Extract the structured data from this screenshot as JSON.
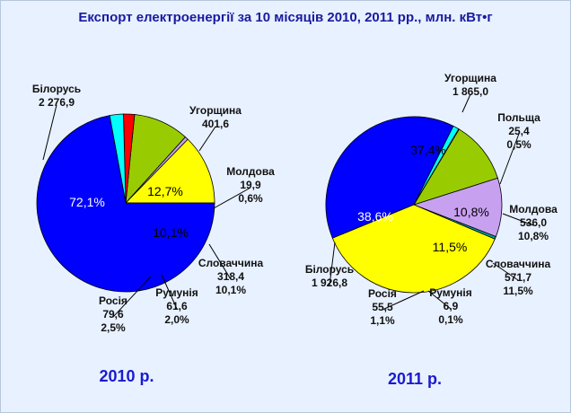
{
  "chart_data": {
    "type": "pie",
    "title": "Експорт електроенергії за 10 місяців 2010, 2011 рр., млн. кВт•г",
    "charts": [
      {
        "label": "2010 р.",
        "slices": [
          {
            "name": "Угорщина",
            "value": "401,6",
            "pct_label": "12,7%",
            "share": 12.7,
            "color": "#ffff00"
          },
          {
            "name": "Молдова",
            "value": "19,9",
            "pct_label": "0,6%",
            "share": 0.6,
            "color": "#c8a0f0"
          },
          {
            "name": "Словаччина",
            "value": "318,4",
            "pct_label": "10,1%",
            "share": 10.1,
            "color": "#99cc00"
          },
          {
            "name": "Румунія",
            "value": "61,6",
            "pct_label": "2,0%",
            "share": 2.0,
            "color": "#ff0000"
          },
          {
            "name": "Росія",
            "value": "79,6",
            "pct_label": "2,5%",
            "share": 2.5,
            "color": "#00ffff"
          },
          {
            "name": "Білорусь",
            "value": "2 276,9",
            "pct_label": "72,1%",
            "share": 72.1,
            "color": "#0000ff"
          }
        ]
      },
      {
        "label": "2011 р.",
        "slices": [
          {
            "name": "Польща",
            "value": "25,4",
            "pct_label": "0,5%",
            "share": 0.5,
            "color": "#00a0a0"
          },
          {
            "name": "Молдова",
            "value": "536,0",
            "pct_label": "10,8%",
            "share": 10.8,
            "color": "#c8a0f0"
          },
          {
            "name": "Словаччина",
            "value": "571,7",
            "pct_label": "11,5%",
            "share": 11.5,
            "color": "#99cc00"
          },
          {
            "name": "Румунія",
            "value": "6,9",
            "pct_label": "0,1%",
            "share": 0.1,
            "color": "#ff0000"
          },
          {
            "name": "Росія",
            "value": "55,5",
            "pct_label": "1,1%",
            "share": 1.1,
            "color": "#00ffff"
          },
          {
            "name": "Білорусь",
            "value": "1 926,8",
            "pct_label": "38,6%",
            "share": 38.6,
            "color": "#0000ff"
          },
          {
            "name": "Угорщина",
            "value": "1 865,0",
            "pct_label": "37,4%",
            "share": 37.4,
            "color": "#ffff00"
          }
        ]
      }
    ]
  }
}
